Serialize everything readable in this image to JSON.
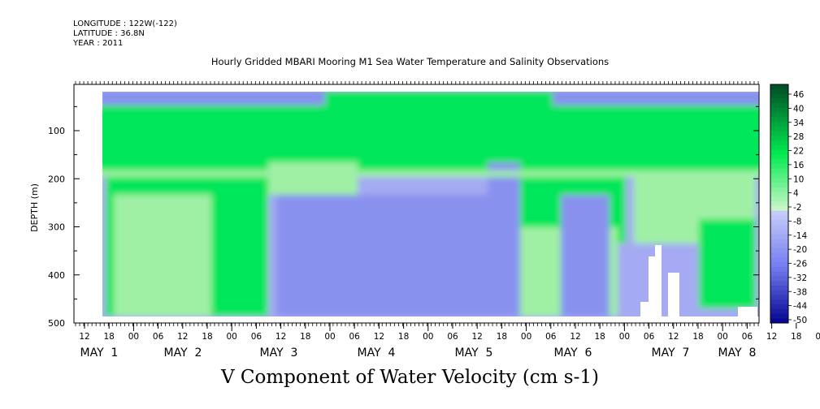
{
  "header": {
    "longitude": "LONGITUDE : 122W(-122)",
    "latitude": "LATITUDE : 36.8N",
    "year": "YEAR : 2011"
  },
  "colors": {
    "green": "#00e65a",
    "light_green": "#9ff0a4",
    "blue_light": "#a5aaf2",
    "blue_mid": "#8892ee",
    "white": "#ffffff"
  },
  "chart_data": {
    "type": "heatmap",
    "title": "Hourly Gridded MBARI Mooring M1 Sea Water Temperature and Salinity Observations",
    "xlabel": "V Component of Water Velocity (cm s-1)",
    "ylabel": "DEPTH (m)",
    "ylim": [
      500,
      0
    ],
    "y_ticks": [
      100,
      200,
      300,
      400,
      500
    ],
    "x_hour_ticks": [
      "12",
      "18",
      "00",
      "06",
      "12",
      "18",
      "00",
      "06",
      "12",
      "18",
      "00",
      "06",
      "12",
      "18",
      "00",
      "06",
      "12",
      "18",
      "00",
      "06",
      "12",
      "18",
      "00",
      "06",
      "12",
      "18",
      "00",
      "06",
      "12",
      "18",
      "00",
      "06"
    ],
    "x_day_labels": [
      "MAY  1",
      "MAY  2",
      "MAY  3",
      "MAY  4",
      "MAY  5",
      "MAY  6",
      "MAY  7",
      "MAY  8"
    ],
    "colorbar": {
      "levels": [
        "46",
        "40",
        "34",
        "28",
        "22",
        "16",
        "10",
        "4",
        "-2",
        "-8",
        "-14",
        "-20",
        "-26",
        "-32",
        "-38",
        "-44",
        "-50"
      ],
      "range": [
        -50,
        52
      ]
    },
    "regions": [
      {
        "name": "surface blue layer",
        "depth": [
          20,
          40
        ],
        "value": -10
      },
      {
        "name": "upper green layer",
        "depth": [
          30,
          210
        ],
        "value": 12
      },
      {
        "name": "deep blue layer, May 3-6",
        "depth": [
          210,
          490
        ],
        "value": -12
      },
      {
        "name": "deep green, May 1-2",
        "depth": [
          150,
          490
        ],
        "value": 8
      },
      {
        "name": "no data, May 7",
        "depth": [
          340,
          490
        ],
        "value": null
      }
    ]
  }
}
